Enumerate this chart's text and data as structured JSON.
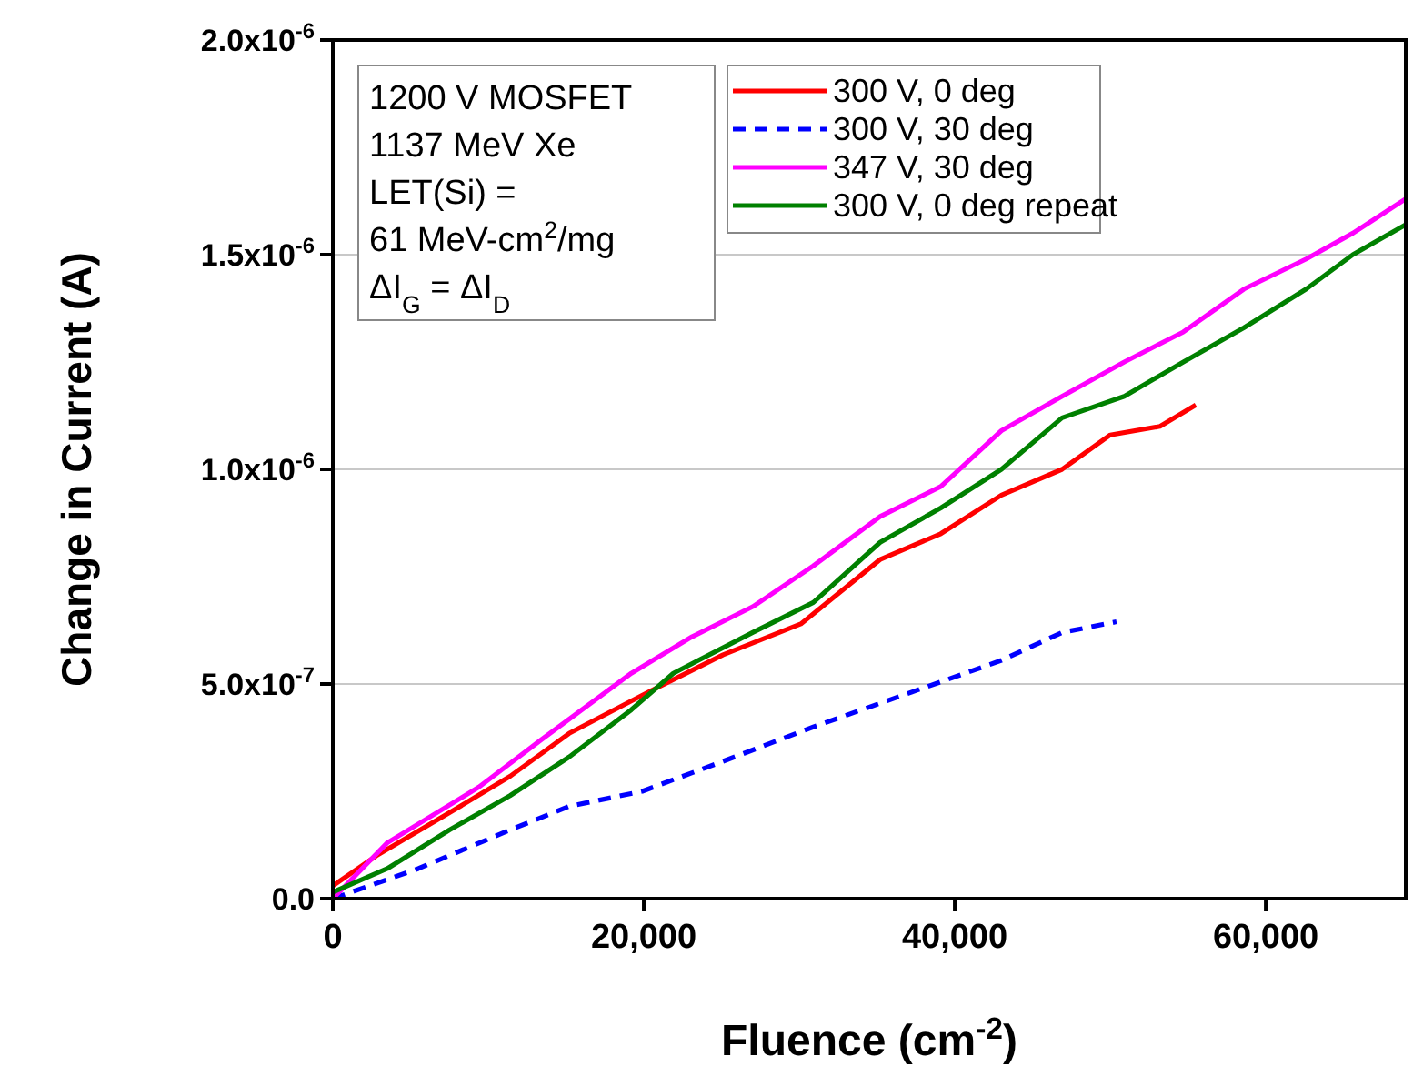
{
  "chart_data": {
    "type": "line",
    "xlabel": "Fluence (cm$^{-2}$)",
    "ylabel": "Change in Current (A)",
    "xlim": [
      0,
      69000
    ],
    "xticks": [
      {
        "value": 0,
        "label": "0"
      },
      {
        "value": 20000,
        "label": "20,000"
      },
      {
        "value": 40000,
        "label": "40,000"
      },
      {
        "value": 60000,
        "label": "60,000"
      }
    ],
    "ylim": [
      0,
      2e-06
    ],
    "yticks": [
      {
        "value": 0,
        "label": "0.0"
      },
      {
        "value": 5e-07,
        "label": "5.0x10$^{-7}$"
      },
      {
        "value": 1e-06,
        "label": "1.0x10$^{-6}$"
      },
      {
        "value": 1.5e-06,
        "label": "1.5x10$^{-6}$"
      },
      {
        "value": 2e-06,
        "label": "2.0x10$^{-6}$"
      }
    ],
    "grid": "y",
    "legend": "top",
    "annotations": [
      "1200 V MOSFET",
      "1137 MeV Xe",
      "LET(Si) =",
      "61 MeV-cm$^{2}$/mg",
      "ΔI$_{G}$ = ΔI$_{D}$"
    ],
    "series": [
      {
        "name": "300 V, 0 deg",
        "color": "#ff0000",
        "line_style": "solid",
        "x": [
          0,
          2800,
          7500,
          11400,
          15200,
          20400,
          25100,
          30100,
          35200,
          39100,
          43000,
          46900,
          50000,
          53200,
          55500
        ],
        "values": [
          3e-08,
          1e-07,
          2e-07,
          2.85e-07,
          3.85e-07,
          4.83e-07,
          5.68e-07,
          6.4e-07,
          7.9e-07,
          8.5e-07,
          9.4e-07,
          1e-06,
          1.08e-06,
          1.1e-06,
          1.15e-06
        ]
      },
      {
        "name": "300 V, 30 deg",
        "color": "#0000ff",
        "line_style": "dashed",
        "x": [
          0,
          5500,
          11400,
          15200,
          19900,
          25100,
          30900,
          34800,
          43000,
          46900,
          50400
        ],
        "values": [
          0,
          7e-08,
          1.6e-07,
          2.15e-07,
          2.5e-07,
          3.2e-07,
          4e-07,
          4.5e-07,
          5.55e-07,
          6.2e-07,
          6.45e-07
        ]
      },
      {
        "name": "347 V, 30 deg",
        "color": "#ff00ff",
        "line_style": "solid",
        "x": [
          0,
          3500,
          9400,
          13400,
          19200,
          23100,
          27000,
          30900,
          35200,
          39100,
          43000,
          46900,
          50900,
          54700,
          58600,
          62600,
          65600,
          69000
        ],
        "values": [
          0,
          1.3e-07,
          2.6e-07,
          3.7e-07,
          5.25e-07,
          6.1e-07,
          6.8e-07,
          7.75e-07,
          8.9e-07,
          9.6e-07,
          1.09e-06,
          1.17e-06,
          1.25e-06,
          1.32e-06,
          1.42e-06,
          1.49e-06,
          1.55e-06,
          1.63e-06
        ]
      },
      {
        "name": "300 V, 0 deg repeat",
        "color": "#008000",
        "line_style": "solid",
        "x": [
          0,
          3500,
          7500,
          11400,
          15200,
          19200,
          21900,
          27000,
          30900,
          35200,
          39100,
          43000,
          46900,
          50900,
          54700,
          58600,
          62600,
          65600,
          69000
        ],
        "values": [
          1.5e-08,
          7e-08,
          1.6e-07,
          2.4e-07,
          3.3e-07,
          4.4e-07,
          5.25e-07,
          6.2e-07,
          6.9e-07,
          8.3e-07,
          9.1e-07,
          1e-06,
          1.12e-06,
          1.17e-06,
          1.25e-06,
          1.33e-06,
          1.42e-06,
          1.5e-06,
          1.57e-06
        ]
      }
    ]
  }
}
